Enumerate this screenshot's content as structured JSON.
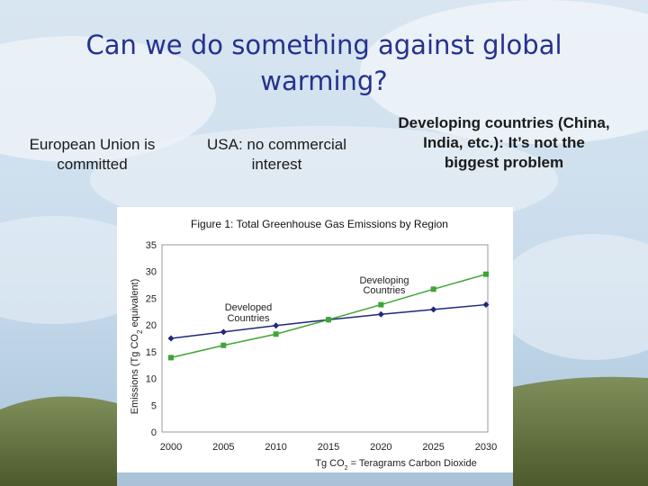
{
  "slide": {
    "title": "Can we do something against global warming?",
    "caption_eu": "European Union is committed",
    "caption_usa": "USA: no commercial interest",
    "caption_developing": "Developing countries (China, India, etc.): It’s not the biggest problem"
  },
  "colors": {
    "title": "#26318f",
    "developed_series": "#1f2a7a",
    "developing_series": "#3fa535",
    "plot_border": "#9a9a9a"
  },
  "chart_data": {
    "type": "line",
    "title": "Figure 1: Total Greenhouse Gas Emissions by Region",
    "ylabel": "Emissions (Tg CO2 equivalent)",
    "xlabel": "Tg CO2 = Teragrams Carbon Dioxide",
    "x": [
      2000,
      2005,
      2010,
      2015,
      2020,
      2025,
      2030
    ],
    "x_ticks": [
      "2000",
      "2005",
      "2010",
      "2015",
      "2020",
      "2025",
      "2030"
    ],
    "y_ticks": [
      "0",
      "5",
      "10",
      "15",
      "20",
      "25",
      "30",
      "35"
    ],
    "ylim": [
      0,
      35
    ],
    "xlim": [
      2000,
      2030
    ],
    "grid": false,
    "series": [
      {
        "name": "Developed Countries",
        "values": [
          17.5,
          18.7,
          19.9,
          21.0,
          22.0,
          22.9,
          23.8
        ]
      },
      {
        "name": "Developing Countries",
        "values": [
          13.9,
          16.2,
          18.3,
          21.0,
          23.8,
          26.7,
          29.5
        ]
      }
    ],
    "annotations": {
      "developed": [
        "Developed",
        "Countries"
      ],
      "developing": [
        "Developing",
        "Countries"
      ]
    }
  }
}
